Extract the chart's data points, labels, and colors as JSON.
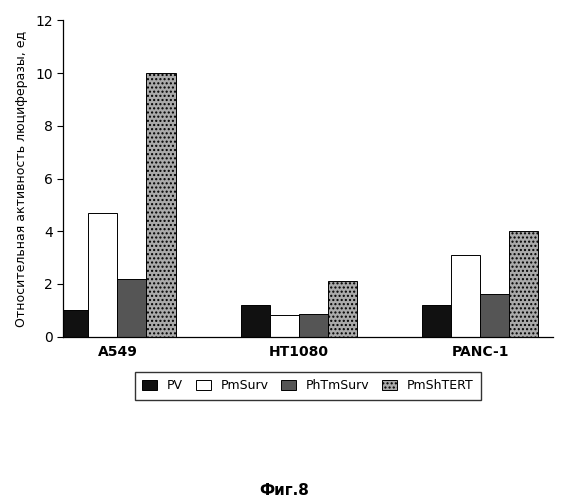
{
  "groups": [
    "A549",
    "HT1080",
    "PANC-1"
  ],
  "series": [
    "PV",
    "PmSurv",
    "PhTmSurv",
    "PmShTERT"
  ],
  "values": {
    "A549": [
      1.0,
      4.7,
      2.2,
      10.0
    ],
    "HT1080": [
      1.2,
      0.8,
      0.85,
      2.1
    ],
    "PANC-1": [
      1.2,
      3.1,
      1.6,
      4.0
    ]
  },
  "colors": [
    "#111111",
    "#ffffff",
    "#555555",
    "#aaaaaa"
  ],
  "hatches": [
    null,
    null,
    null,
    "...."
  ],
  "edgecolor": "#000000",
  "ylabel": "Относительная активность люциферазы, ед",
  "ylim": [
    0,
    12
  ],
  "yticks": [
    0,
    2,
    4,
    6,
    8,
    10,
    12
  ],
  "bar_width": 0.16,
  "fig_caption": "Фиг.8",
  "background_color": "#ffffff",
  "legend_labels": [
    "PV",
    "PmSurv",
    "PhTmSurv",
    "PmShTERT"
  ]
}
